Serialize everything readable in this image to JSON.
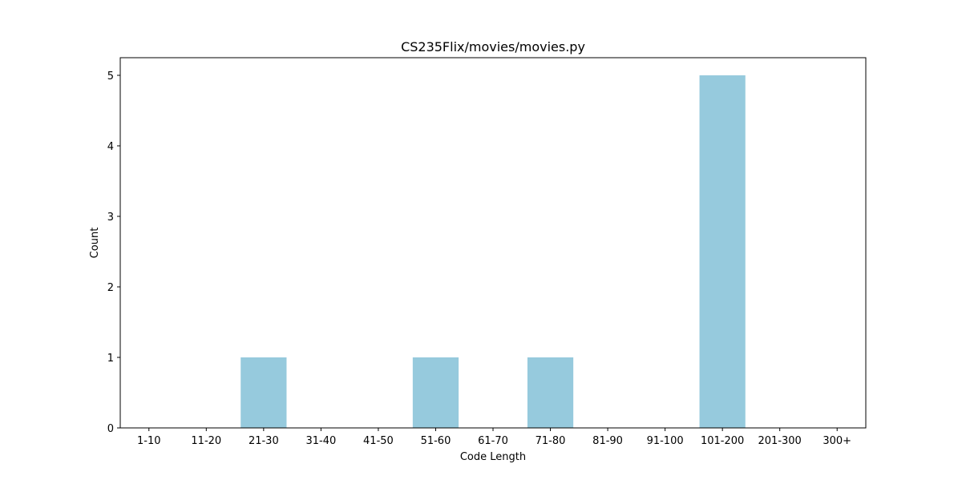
{
  "chart_data": {
    "type": "bar",
    "title": "CS235Flix/movies/movies.py",
    "xlabel": "Code Length",
    "ylabel": "Count",
    "categories": [
      "1-10",
      "11-20",
      "21-30",
      "31-40",
      "41-50",
      "51-60",
      "61-70",
      "71-80",
      "81-90",
      "91-100",
      "101-200",
      "201-300",
      "300+"
    ],
    "values": [
      0,
      0,
      1,
      0,
      0,
      1,
      0,
      1,
      0,
      0,
      5,
      0,
      0
    ],
    "ylim": [
      0,
      5.25
    ],
    "yticks": [
      0,
      1,
      2,
      3,
      4,
      5
    ],
    "bar_color": "#96cadd",
    "grid": false,
    "legend": "none"
  }
}
